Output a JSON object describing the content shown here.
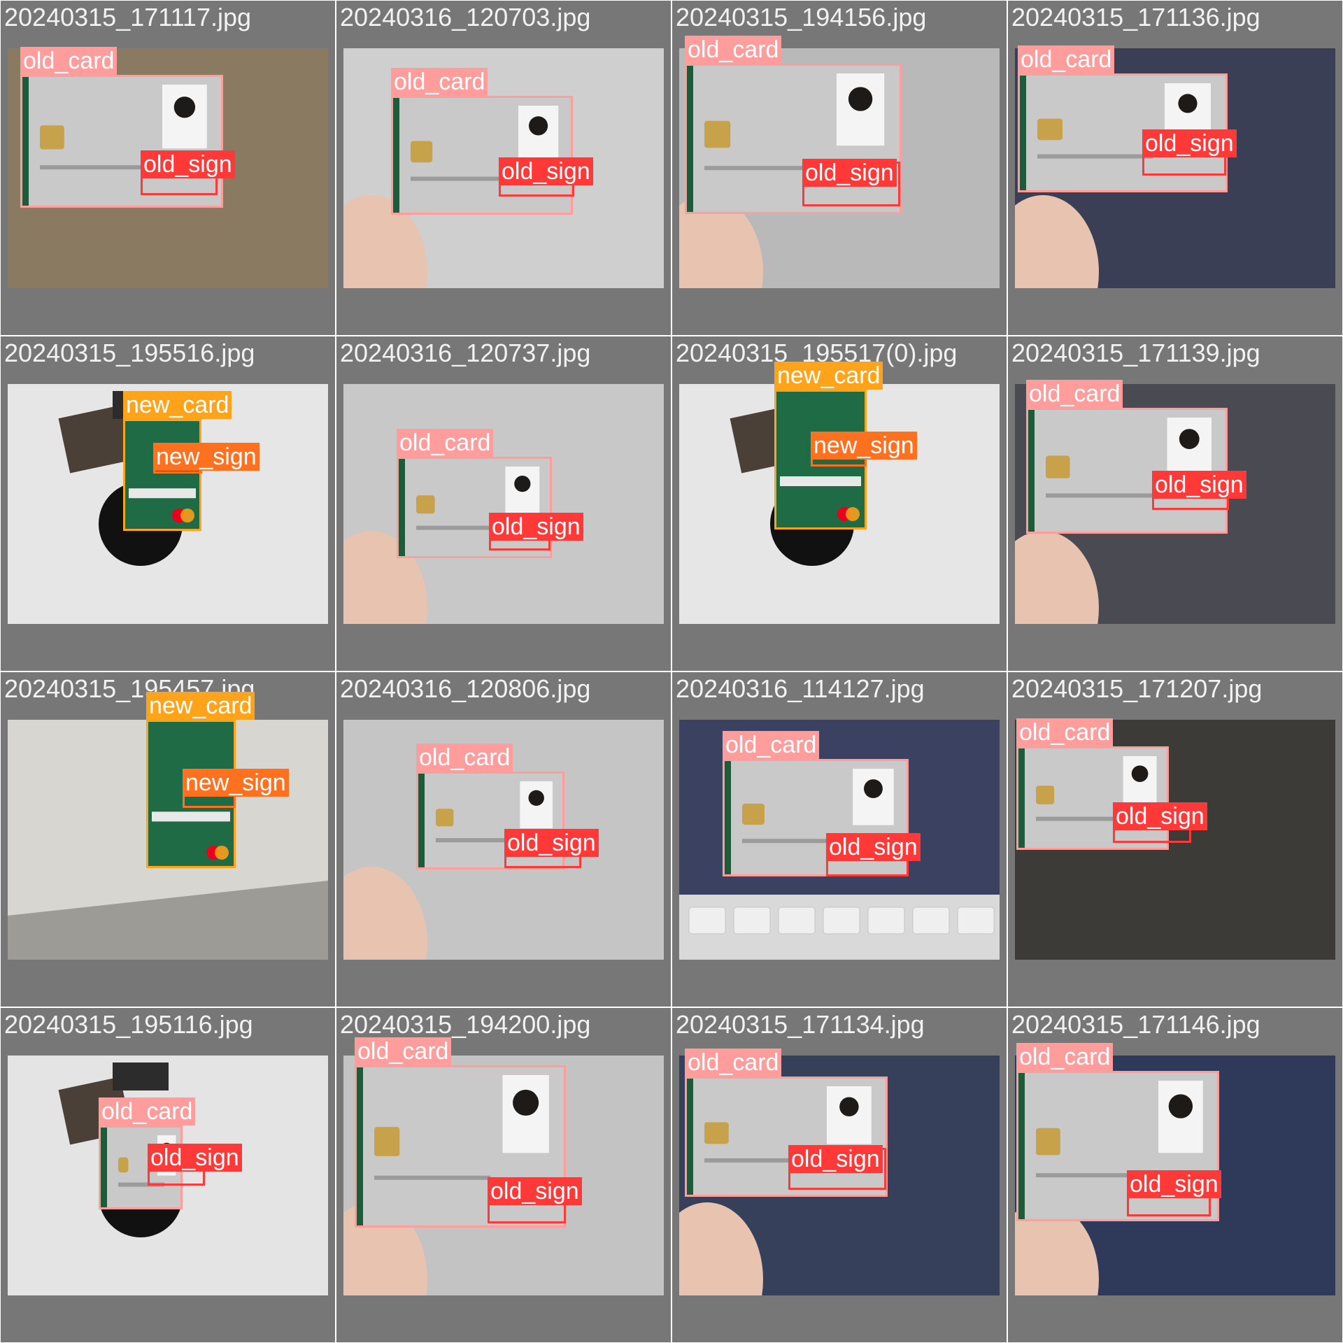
{
  "label_colors": {
    "old_card": "#ff9c9c",
    "new_card": "#ffa31a",
    "old_sign": "#ff3838",
    "new_sign": "#ff701f"
  },
  "tiles": [
    {
      "file": "20240315_171117.jpg",
      "labels": [
        "old_card",
        "old_sign"
      ]
    },
    {
      "file": "20240316_120703.jpg",
      "labels": [
        "old_card",
        "old_sign"
      ]
    },
    {
      "file": "20240315_194156.jpg",
      "labels": [
        "old_card",
        "old_sign"
      ]
    },
    {
      "file": "20240315_171136.jpg",
      "labels": [
        "old_card",
        "old_sign"
      ]
    },
    {
      "file": "20240315_195516.jpg",
      "labels": [
        "new_card",
        "new_sign"
      ]
    },
    {
      "file": "20240316_120737.jpg",
      "labels": [
        "old_card",
        "old_sign"
      ]
    },
    {
      "file": "20240315_195517(0).jpg",
      "labels": [
        "new_card",
        "new_sign"
      ]
    },
    {
      "file": "20240315_171139.jpg",
      "labels": [
        "old_card",
        "old_sign"
      ]
    },
    {
      "file": "20240315_195457.jpg",
      "labels": [
        "new_card",
        "new_sign"
      ]
    },
    {
      "file": "20240316_120806.jpg",
      "labels": [
        "old_card",
        "old_sign"
      ]
    },
    {
      "file": "20240316_114127.jpg",
      "labels": [
        "old_card",
        "old_sign"
      ]
    },
    {
      "file": "20240315_171207.jpg",
      "labels": [
        "old_card",
        "old_sign"
      ]
    },
    {
      "file": "20240315_195116.jpg",
      "labels": [
        "old_card",
        "old_sign"
      ]
    },
    {
      "file": "20240315_194200.jpg",
      "labels": [
        "old_card",
        "old_sign"
      ]
    },
    {
      "file": "20240315_171134.jpg",
      "labels": [
        "old_card",
        "old_sign"
      ]
    },
    {
      "file": "20240315_171146.jpg",
      "labels": [
        "old_card",
        "old_sign"
      ]
    }
  ]
}
